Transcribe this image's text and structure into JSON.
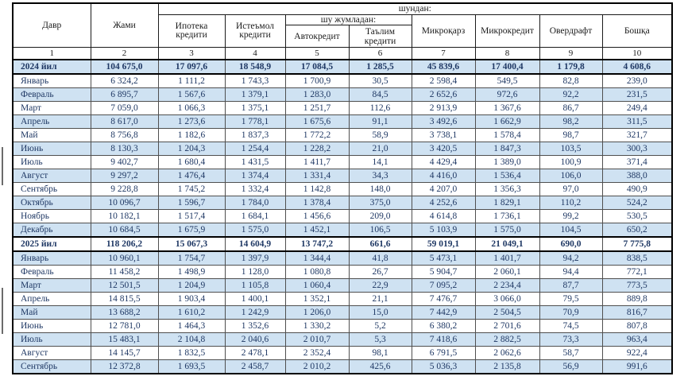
{
  "table": {
    "header": {
      "col_period": "Давр",
      "col_total": "Жами",
      "span_shundan": "шундан:",
      "col_mortgage": "Ипотека кредити",
      "col_consumer": "Истеъмол кредити",
      "span_including": "шу жумладан:",
      "col_auto": "Автокредит",
      "col_education": "Таълим кредити",
      "col_microloan": "Микроқарз",
      "col_microcredit": "Микрокредит",
      "col_overdraft": "Овердрафт",
      "col_other": "Бошқа",
      "col_numbers": [
        "1",
        "2",
        "3",
        "4",
        "5",
        "6",
        "7",
        "8",
        "9",
        "10"
      ]
    },
    "rows": [
      {
        "label": "2024 йил",
        "type": "year",
        "values": [
          "104 675,0",
          "17 097,6",
          "18 548,9",
          "17 084,5",
          "1 285,5",
          "45 839,6",
          "17 400,4",
          "1 179,8",
          "4 608,6"
        ]
      },
      {
        "label": "Январь",
        "type": "month",
        "values": [
          "6 324,2",
          "1 111,2",
          "1 743,3",
          "1 700,9",
          "30,5",
          "2 598,4",
          "549,5",
          "82,8",
          "239,0"
        ]
      },
      {
        "label": "Февраль",
        "type": "month",
        "values": [
          "6 895,7",
          "1 567,6",
          "1 379,1",
          "1 283,0",
          "84,5",
          "2 652,6",
          "972,6",
          "92,2",
          "231,5"
        ]
      },
      {
        "label": "Март",
        "type": "month",
        "values": [
          "7 059,0",
          "1 066,3",
          "1 375,1",
          "1 251,7",
          "112,6",
          "2 913,9",
          "1 367,6",
          "86,7",
          "249,4"
        ]
      },
      {
        "label": "Апрель",
        "type": "month",
        "values": [
          "8 617,0",
          "1 273,6",
          "1 778,1",
          "1 675,6",
          "91,1",
          "3 492,6",
          "1 662,9",
          "98,2",
          "311,5"
        ]
      },
      {
        "label": "Май",
        "type": "month",
        "values": [
          "8 756,8",
          "1 182,6",
          "1 837,3",
          "1 772,2",
          "58,9",
          "3 738,1",
          "1 578,4",
          "98,7",
          "321,7"
        ]
      },
      {
        "label": "Июнь",
        "type": "month",
        "values": [
          "8 130,3",
          "1 204,3",
          "1 254,4",
          "1 228,2",
          "21,0",
          "3 420,5",
          "1 847,3",
          "103,5",
          "300,3"
        ]
      },
      {
        "label": "Июль",
        "type": "month",
        "values": [
          "9 402,7",
          "1 680,4",
          "1 431,5",
          "1 411,7",
          "14,1",
          "4 429,4",
          "1 389,0",
          "100,9",
          "371,4"
        ]
      },
      {
        "label": "Август",
        "type": "month",
        "values": [
          "9 297,2",
          "1 476,4",
          "1 374,4",
          "1 331,4",
          "34,3",
          "4 416,0",
          "1 536,4",
          "106,0",
          "388,0"
        ]
      },
      {
        "label": "Сентябрь",
        "type": "month",
        "values": [
          "9 228,8",
          "1 745,2",
          "1 332,4",
          "1 142,8",
          "148,0",
          "4 207,0",
          "1 356,3",
          "97,0",
          "490,9"
        ]
      },
      {
        "label": "Октябрь",
        "type": "month",
        "values": [
          "10 096,7",
          "1 596,7",
          "1 784,0",
          "1 378,4",
          "375,0",
          "4 252,6",
          "1 829,1",
          "110,2",
          "524,2"
        ]
      },
      {
        "label": "Ноябрь",
        "type": "month",
        "values": [
          "10 182,1",
          "1 517,4",
          "1 684,1",
          "1 456,6",
          "209,0",
          "4 614,8",
          "1 736,1",
          "99,2",
          "530,5"
        ]
      },
      {
        "label": "Декабрь",
        "type": "month",
        "values": [
          "10 684,5",
          "1 675,9",
          "1 575,0",
          "1 452,1",
          "106,5",
          "5 103,9",
          "1 575,0",
          "104,5",
          "650,2"
        ]
      },
      {
        "label": "2025 йил",
        "type": "year",
        "values": [
          "118 206,2",
          "15 067,3",
          "14 604,9",
          "13 747,2",
          "661,6",
          "59 019,1",
          "21 049,1",
          "690,0",
          "7 775,8"
        ]
      },
      {
        "label": "Январь",
        "type": "month",
        "values": [
          "10 960,1",
          "1 754,7",
          "1 397,9",
          "1 344,4",
          "41,8",
          "5 473,1",
          "1 401,7",
          "94,2",
          "838,5"
        ]
      },
      {
        "label": "Февраль",
        "type": "month",
        "values": [
          "11 458,2",
          "1 498,9",
          "1 128,0",
          "1 080,8",
          "26,7",
          "5 904,7",
          "2 060,1",
          "94,4",
          "772,1"
        ]
      },
      {
        "label": "Март",
        "type": "month",
        "values": [
          "12 501,5",
          "1 204,9",
          "1 105,8",
          "1 060,4",
          "22,9",
          "7 095,2",
          "2 234,4",
          "87,7",
          "773,5"
        ]
      },
      {
        "label": "Апрель",
        "type": "month",
        "values": [
          "14 815,5",
          "1 903,4",
          "1 400,1",
          "1 352,1",
          "21,1",
          "7 476,7",
          "3 066,0",
          "79,5",
          "889,8"
        ]
      },
      {
        "label": "Май",
        "type": "month",
        "values": [
          "13 688,2",
          "1 610,2",
          "1 242,9",
          "1 206,0",
          "15,0",
          "7 442,9",
          "2 504,5",
          "70,9",
          "816,7"
        ]
      },
      {
        "label": "Июнь",
        "type": "month",
        "values": [
          "12 781,0",
          "1 464,3",
          "1 352,6",
          "1 330,2",
          "5,2",
          "6 380,2",
          "2 701,6",
          "74,5",
          "807,8"
        ]
      },
      {
        "label": "Июль",
        "type": "month",
        "values": [
          "15 483,1",
          "2 104,8",
          "2 040,6",
          "2 010,7",
          "5,3",
          "7 418,6",
          "2 882,5",
          "73,3",
          "963,4"
        ]
      },
      {
        "label": "Август",
        "type": "month",
        "values": [
          "14 145,7",
          "1 832,5",
          "2 478,1",
          "2 352,4",
          "98,1",
          "6 791,5",
          "2 062,6",
          "58,7",
          "922,4"
        ]
      },
      {
        "label": "Сентябрь",
        "type": "month",
        "values": [
          "12 372,8",
          "1 693,5",
          "2 458,7",
          "2 010,2",
          "425,6",
          "5 036,3",
          "2 135,8",
          "56,9",
          "991,6"
        ]
      }
    ]
  },
  "colors": {
    "row_alt_blue": "#cfe2f2",
    "data_text": "#1f3864",
    "header_text": "#1a1a1a",
    "border_black": "#000000"
  }
}
